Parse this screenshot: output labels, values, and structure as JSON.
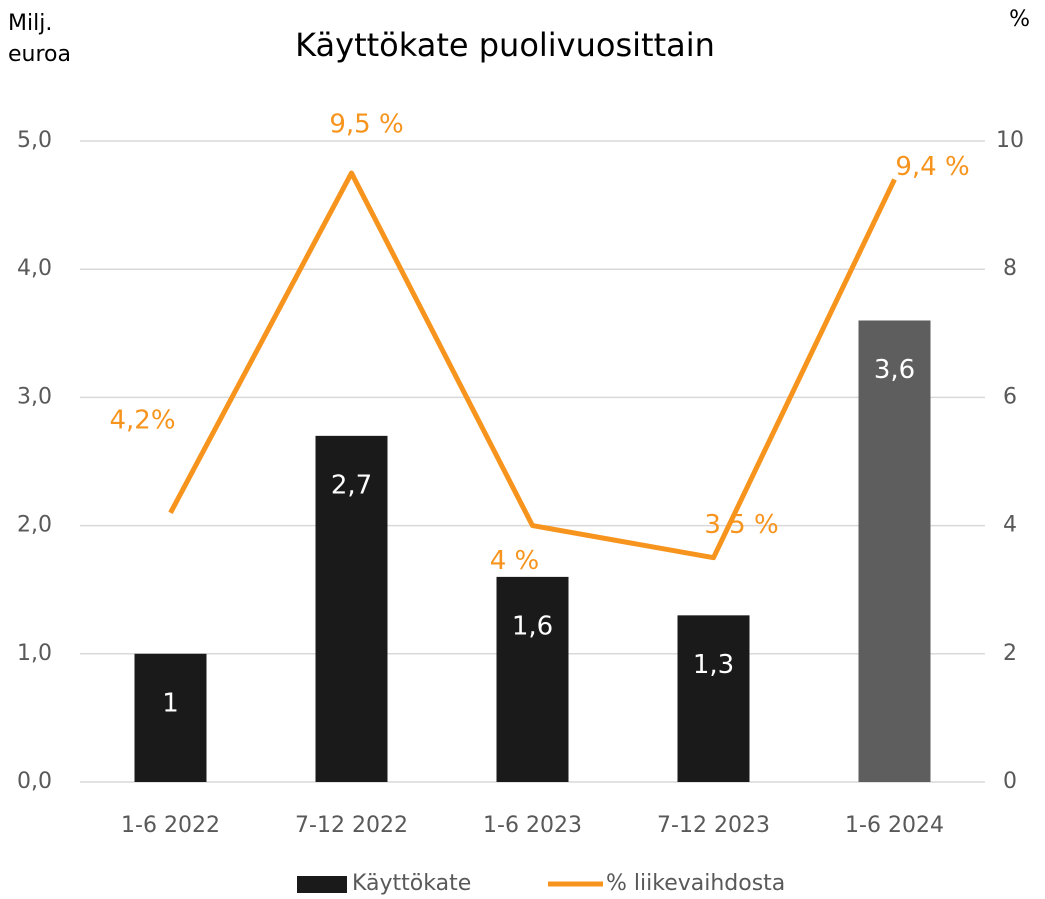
{
  "chart_data": {
    "type": "bar+line",
    "title": "Käyttökate puolivuosittain",
    "ylabel_lines": [
      "Milj.",
      "euroa"
    ],
    "y2label": "%",
    "categories": [
      "1-6 2022",
      "7-12 2022",
      "1-6 2023",
      "7-12 2023",
      "1-6 2024"
    ],
    "series": [
      {
        "name": "Käyttökate",
        "type": "bar",
        "color": "#1a1a1a",
        "colors": [
          "#1a1a1a",
          "#1a1a1a",
          "#1a1a1a",
          "#1a1a1a",
          "#5e5e5e"
        ],
        "values": [
          1,
          2.7,
          1.6,
          1.3,
          3.6
        ],
        "value_labels": [
          "1",
          "2,7",
          "1,6",
          "1,3",
          "3,6"
        ]
      },
      {
        "name": "% liikevaihdosta",
        "type": "line",
        "axis": "y2",
        "color": "#f7941d",
        "values": [
          4.2,
          9.5,
          4,
          3.5,
          9.4
        ],
        "value_labels": [
          "4,2%",
          "9,5 %",
          "4 %",
          "3,5 %",
          "9,4 %"
        ]
      }
    ],
    "ylim": [
      0,
      5
    ],
    "yticks": [
      {
        "value": 0,
        "label": "0,0"
      },
      {
        "value": 1,
        "label": "1,0"
      },
      {
        "value": 2,
        "label": "2,0"
      },
      {
        "value": 3,
        "label": "3,0"
      },
      {
        "value": 4,
        "label": "4,0"
      },
      {
        "value": 5,
        "label": "5,0"
      }
    ],
    "y2lim": [
      0,
      10
    ],
    "y2ticks": [
      0,
      2,
      4,
      6,
      8,
      10
    ],
    "grid": true,
    "legend": "bottom"
  }
}
